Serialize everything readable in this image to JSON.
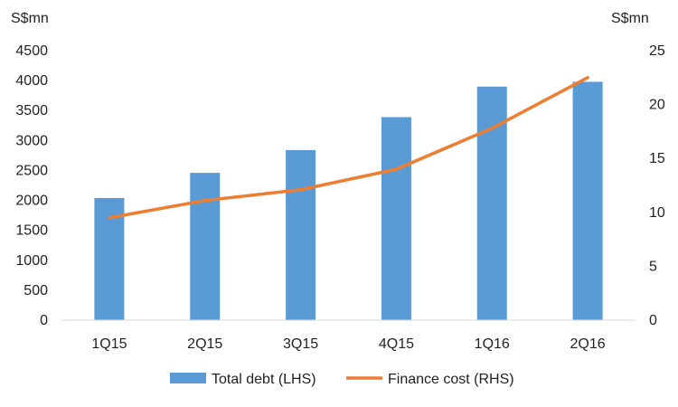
{
  "chart_data": {
    "type": "bar",
    "categories": [
      "1Q15",
      "2Q15",
      "3Q15",
      "4Q15",
      "1Q16",
      "2Q16"
    ],
    "series": [
      {
        "name": "Total debt (LHS)",
        "type": "bar",
        "axis": "left",
        "color": "#5B9BD5",
        "values": [
          2040,
          2460,
          2840,
          3390,
          3900,
          3980
        ]
      },
      {
        "name": "Finance cost (RHS)",
        "type": "line",
        "axis": "right",
        "color": "#ED7D31",
        "values": [
          9.5,
          11.1,
          12.1,
          14.0,
          17.8,
          22.5
        ]
      }
    ],
    "y_left": {
      "unit": "S$mn",
      "ylim": [
        0,
        4500
      ],
      "ticks": [
        "0",
        "500",
        "1000",
        "1500",
        "2000",
        "2500",
        "3000",
        "3500",
        "4000",
        "4500"
      ]
    },
    "y_right": {
      "unit": "S$mn",
      "ylim": [
        0,
        25
      ],
      "ticks": [
        "0",
        "5",
        "10",
        "15",
        "20",
        "25"
      ]
    },
    "grid": false,
    "legend": "bottom"
  }
}
